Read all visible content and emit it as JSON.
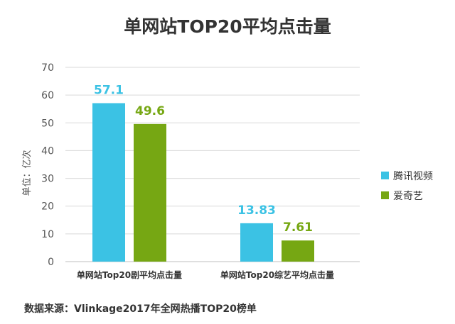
{
  "colors": {
    "tencent": "#3BC2E4",
    "iqiyi": "#76A713",
    "grid": "#D9D9D9",
    "axis": "#BFBFBF"
  },
  "source_note": "数据来源：Vlinkage2017年全网热播TOP20榜单",
  "chart_data": {
    "type": "bar",
    "title": "单网站TOP20平均点击量",
    "ylabel": "单位：亿次",
    "xlabel": "",
    "ylim": [
      0,
      70
    ],
    "yticks": [
      "0",
      "10",
      "20",
      "30",
      "40",
      "50",
      "60",
      "70"
    ],
    "categories": [
      "单网站Top20剧平均点击量",
      "单网站Top20综艺平均点击量"
    ],
    "series": [
      {
        "name": "腾讯视频",
        "color": "#3BC2E4",
        "values": [
          57.1,
          13.83
        ],
        "labels": [
          "57.1",
          "13.83"
        ]
      },
      {
        "name": "爱奇艺",
        "color": "#76A713",
        "values": [
          49.6,
          7.61
        ],
        "labels": [
          "49.6",
          "7.61"
        ]
      }
    ],
    "legend_position": "right",
    "grid": true
  }
}
